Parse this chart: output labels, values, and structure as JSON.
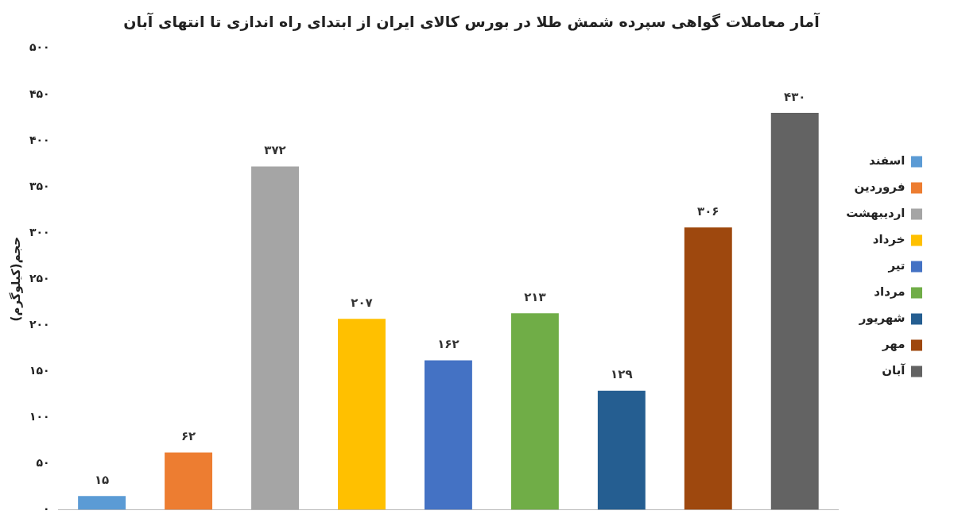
{
  "chart_data": {
    "type": "bar",
    "title": "آمار معاملات گواهی سپرده شمش طلا در بورس کالای ایران از ابتدای راه اندازی تا انتهای آبان",
    "ylabel": "حجم(کیلوگرم)",
    "categories": [
      null,
      null,
      null,
      null,
      null,
      null,
      null,
      null,
      null
    ],
    "series": [
      {
        "name": "اسفند",
        "color": "#5b9bd5",
        "values": [
          15,
          null,
          null,
          null,
          null,
          null,
          null,
          null,
          null
        ],
        "value_labels": [
          "۱۵",
          null,
          null,
          null,
          null,
          null,
          null,
          null,
          null
        ]
      },
      {
        "name": "فروردین",
        "color": "#ed7d31",
        "values": [
          null,
          62,
          null,
          null,
          null,
          null,
          null,
          null,
          null
        ],
        "value_labels": [
          null,
          "۶۲",
          null,
          null,
          null,
          null,
          null,
          null,
          null
        ]
      },
      {
        "name": "اردیبهشت",
        "color": "#a5a5a5",
        "values": [
          null,
          null,
          372,
          null,
          null,
          null,
          null,
          null,
          null
        ],
        "value_labels": [
          null,
          null,
          "۳۷۲",
          null,
          null,
          null,
          null,
          null,
          null
        ]
      },
      {
        "name": "خرداد",
        "color": "#ffc000",
        "values": [
          null,
          null,
          null,
          207,
          null,
          null,
          null,
          null,
          null
        ],
        "value_labels": [
          null,
          null,
          null,
          "۲۰۷",
          null,
          null,
          null,
          null,
          null
        ]
      },
      {
        "name": "تیر",
        "color": "#4472c4",
        "values": [
          null,
          null,
          null,
          null,
          162,
          null,
          null,
          null,
          null
        ],
        "value_labels": [
          null,
          null,
          null,
          null,
          "۱۶۲",
          null,
          null,
          null,
          null
        ]
      },
      {
        "name": "مرداد",
        "color": "#70ad47",
        "values": [
          null,
          null,
          null,
          null,
          null,
          213,
          null,
          null,
          null
        ],
        "value_labels": [
          null,
          null,
          null,
          null,
          null,
          "۲۱۳",
          null,
          null,
          null
        ]
      },
      {
        "name": "شهریور",
        "color": "#255e91",
        "values": [
          null,
          null,
          null,
          null,
          null,
          null,
          129,
          null,
          null
        ],
        "value_labels": [
          null,
          null,
          null,
          null,
          null,
          null,
          "۱۲۹",
          null,
          null
        ]
      },
      {
        "name": "مهر",
        "color": "#9e480e",
        "values": [
          null,
          null,
          null,
          null,
          null,
          null,
          null,
          306,
          null
        ],
        "value_labels": [
          null,
          null,
          null,
          null,
          null,
          null,
          null,
          "۳۰۶",
          null
        ]
      },
      {
        "name": "آبان",
        "color": "#636363",
        "values": [
          null,
          null,
          null,
          null,
          null,
          null,
          null,
          null,
          430
        ],
        "value_labels": [
          null,
          null,
          null,
          null,
          null,
          null,
          null,
          null,
          "۴۳۰"
        ]
      }
    ],
    "ylim": [
      0,
      500
    ],
    "yticks": [
      {
        "value": 0,
        "label": "۰"
      },
      {
        "value": 50,
        "label": "۵۰"
      },
      {
        "value": 100,
        "label": "۱۰۰"
      },
      {
        "value": 150,
        "label": "۱۵۰"
      },
      {
        "value": 200,
        "label": "۲۰۰"
      },
      {
        "value": 250,
        "label": "۲۵۰"
      },
      {
        "value": 300,
        "label": "۳۰۰"
      },
      {
        "value": 350,
        "label": "۳۵۰"
      },
      {
        "value": 400,
        "label": "۴۰۰"
      },
      {
        "value": 450,
        "label": "۴۵۰"
      },
      {
        "value": 500,
        "label": "۵۰۰"
      }
    ],
    "grid": false,
    "legend": "right"
  }
}
